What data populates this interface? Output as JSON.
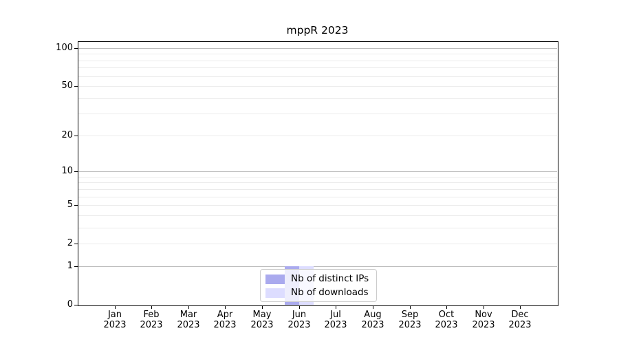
{
  "chart_data": {
    "type": "bar",
    "title": "mppR 2023",
    "categories": [
      "Jan",
      "Feb",
      "Mar",
      "Apr",
      "May",
      "Jun",
      "Jul",
      "Aug",
      "Sep",
      "Oct",
      "Nov",
      "Dec"
    ],
    "year": "2023",
    "series": [
      {
        "name": "Nb of distinct IPs",
        "color": "#aaaaee",
        "values": [
          0,
          0,
          0,
          0,
          0,
          1,
          0,
          0,
          0,
          0,
          0,
          0
        ]
      },
      {
        "name": "Nb of downloads",
        "color": "#ddddff",
        "values": [
          0,
          0,
          0,
          0,
          0,
          1,
          0,
          0,
          0,
          0,
          0,
          0
        ]
      }
    ],
    "xlabel": "",
    "ylabel": "",
    "y_axis": {
      "scale": "log1p",
      "tick_values": [
        0,
        1,
        2,
        5,
        10,
        20,
        50,
        100
      ],
      "major_gridlines": [
        1,
        10,
        100
      ],
      "minor_gridlines": [
        2,
        3,
        4,
        5,
        6,
        7,
        8,
        9,
        20,
        30,
        40,
        50,
        60,
        70,
        80,
        90
      ]
    },
    "ylim": [
      0,
      113
    ],
    "grid": "horizontal",
    "legend_position": "lower center",
    "colors": {
      "grid_major": "#bcbcbc",
      "grid_minor": "#ebebeb",
      "axis": "#000000",
      "legend_border": "#cccccc",
      "background": "#ffffff"
    }
  }
}
